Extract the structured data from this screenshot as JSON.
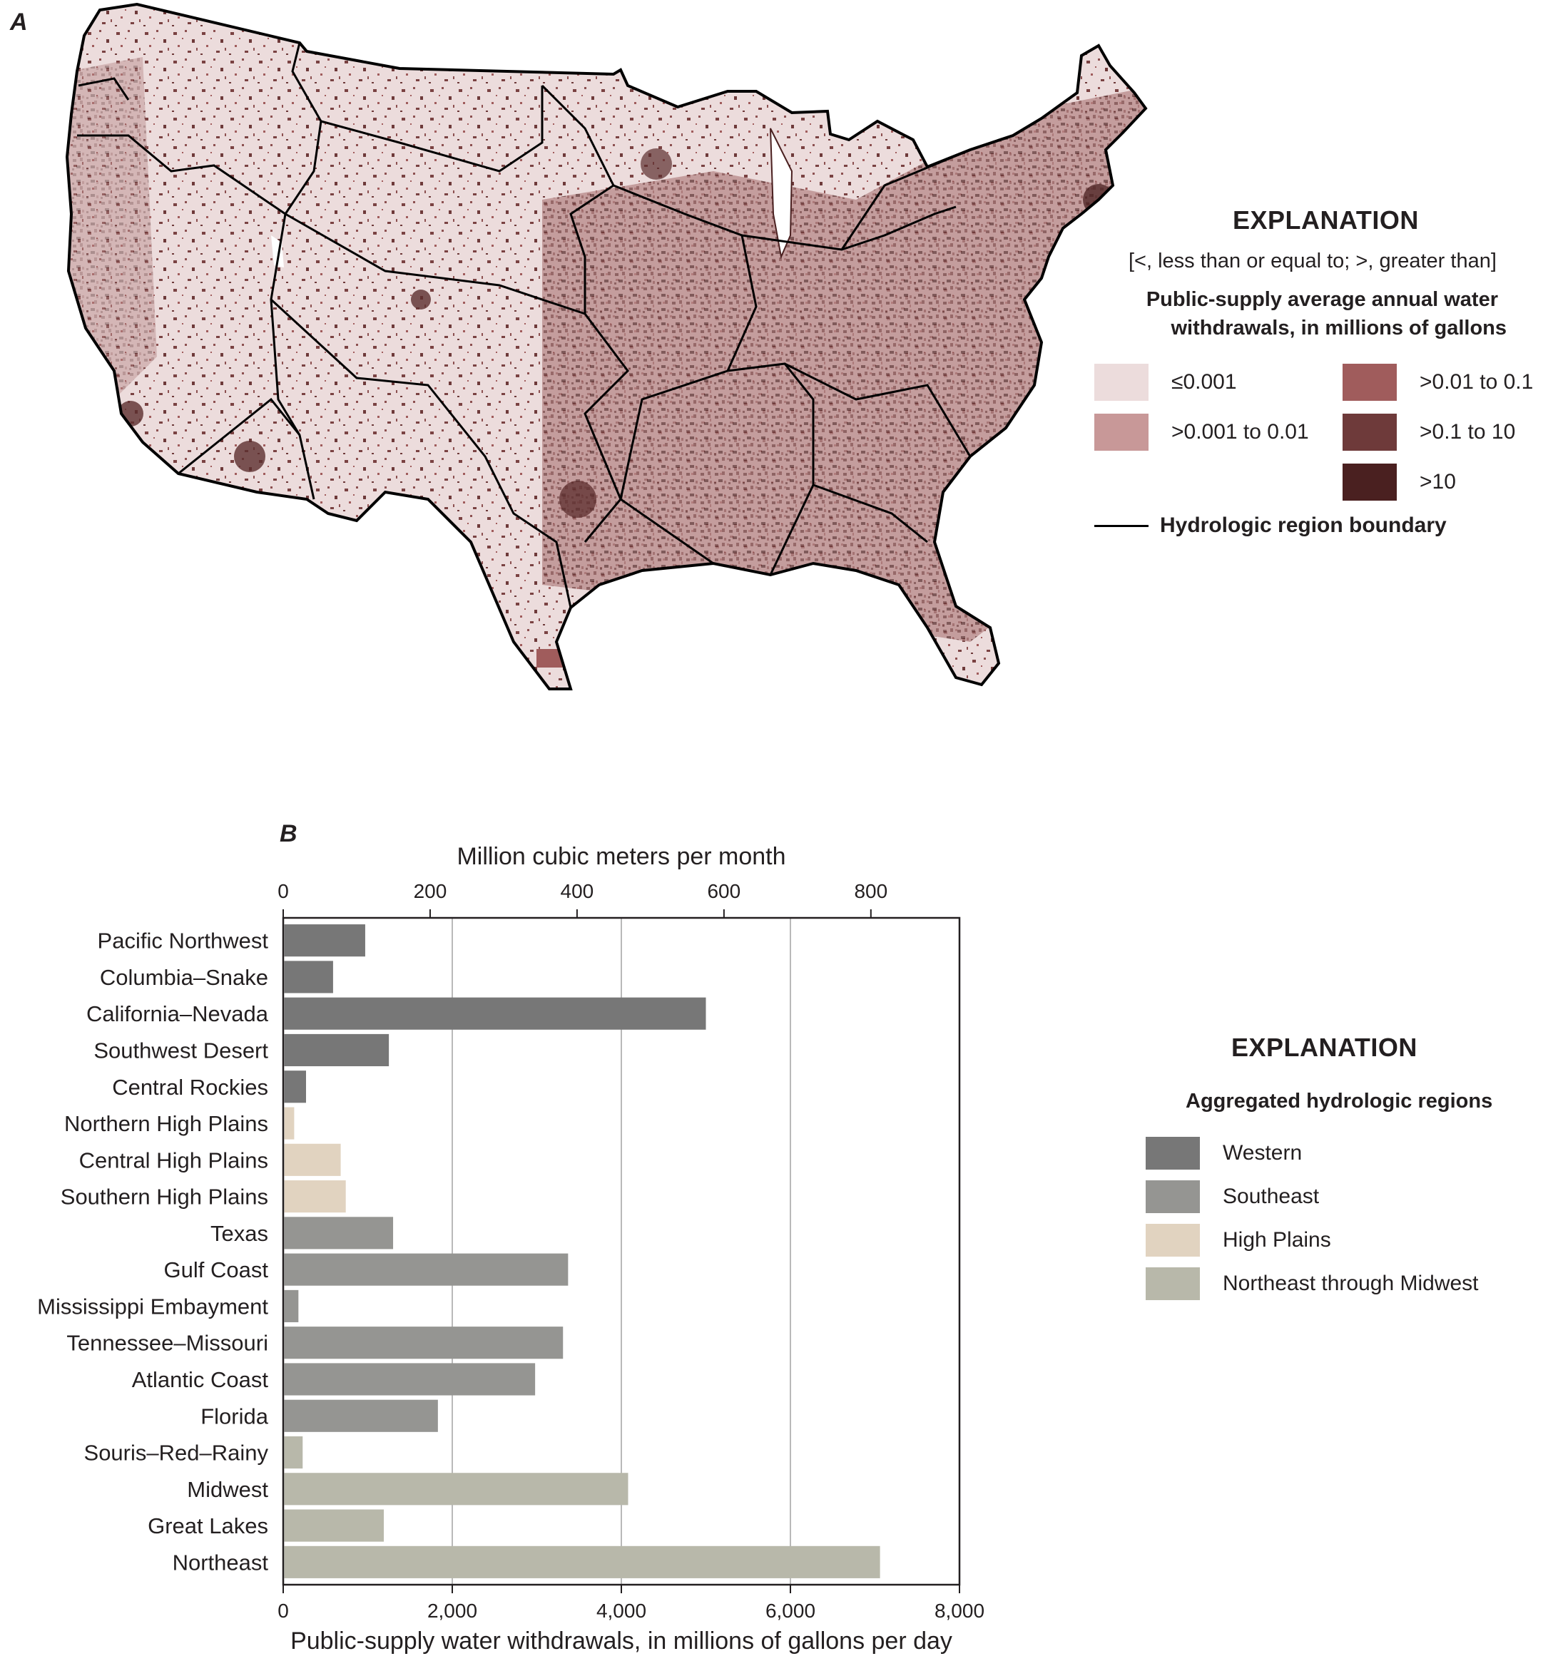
{
  "panel_a": {
    "letter": "A",
    "legend": {
      "title": "EXPLANATION",
      "abbrev_note": "[<, less than or equal to; >, greater than]",
      "subtitle_line1": "Public-supply average annual water",
      "subtitle_line2": "withdrawals, in millions of gallons",
      "classes": [
        {
          "label": "≤0.001",
          "color": "#ecdcdc"
        },
        {
          "label": ">0.001 to 0.01",
          "color": "#c89898"
        },
        {
          "label": ">0.01 to 0.1",
          "color": "#a05c5c"
        },
        {
          "label": ">0.1 to 10",
          "color": "#6e3a3a"
        },
        {
          "label": ">10",
          "color": "#4a2020"
        }
      ],
      "boundary_label": "Hydrologic region boundary"
    }
  },
  "panel_b": {
    "letter": "B",
    "legend": {
      "title": "EXPLANATION",
      "subtitle": "Aggregated hydrologic regions",
      "groups": [
        {
          "label": "Western",
          "color": "#777777"
        },
        {
          "label": "Southeast",
          "color": "#959592"
        },
        {
          "label": "High Plains",
          "color": "#e1d3c0"
        },
        {
          "label": "Northeast through Midwest",
          "color": "#b8b8aa"
        }
      ]
    }
  },
  "chart_data": {
    "type": "bar",
    "orientation": "horizontal",
    "xlabel": "Public-supply water withdrawals, in millions of gallons per day",
    "x2label": "Million cubic meters per month",
    "xlim": [
      0,
      8000
    ],
    "xticks": [
      "0",
      "2,000",
      "4,000",
      "6,000",
      "8,000"
    ],
    "x2ticks": [
      "0",
      "200",
      "400",
      "600",
      "800"
    ],
    "x2_ticks_in_primary_units": [
      0,
      1738,
      3476,
      5214,
      6952
    ],
    "grid": "vertical",
    "categories": [
      "Pacific Northwest",
      "Columbia–Snake",
      "California–Nevada",
      "Southwest Desert",
      "Central Rockies",
      "Northern High Plains",
      "Central High Plains",
      "Southern High Plains",
      "Texas",
      "Gulf Coast",
      "Mississippi Embayment",
      "Tennessee–Missouri",
      "Atlantic Coast",
      "Florida",
      "Souris–Red–Rainy",
      "Midwest",
      "Great Lakes",
      "Northeast"
    ],
    "values": [
      970,
      590,
      5000,
      1250,
      270,
      130,
      680,
      740,
      1300,
      3370,
      180,
      3310,
      2980,
      1830,
      230,
      4080,
      1190,
      7060
    ],
    "groups": [
      "Western",
      "Western",
      "Western",
      "Western",
      "Western",
      "High Plains",
      "High Plains",
      "High Plains",
      "Southeast",
      "Southeast",
      "Southeast",
      "Southeast",
      "Southeast",
      "Southeast",
      "Northeast through Midwest",
      "Northeast through Midwest",
      "Northeast through Midwest",
      "Northeast through Midwest"
    ]
  }
}
